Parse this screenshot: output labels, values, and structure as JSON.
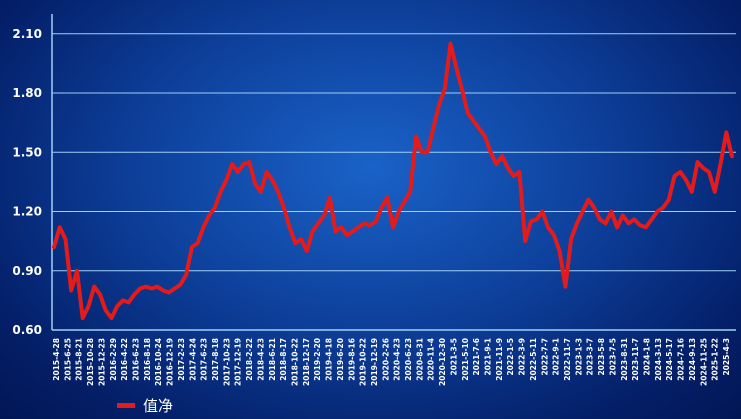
{
  "chart_data": {
    "type": "line",
    "title": "",
    "xlabel": "",
    "ylabel": "",
    "ylim": [
      0.6,
      2.2
    ],
    "yticks": [
      0.6,
      0.9,
      1.2,
      1.5,
      1.8,
      2.1
    ],
    "ytick_labels": [
      "0.60",
      "0.90",
      "1.20",
      "1.50",
      "1.80",
      "2.10"
    ],
    "grid": true,
    "legend_position": "bottom-left",
    "line_color": "#e41b1b",
    "grid_color": "#9fd0f5",
    "xtick_labels": [
      "2015-4-28",
      "2015-6-25",
      "2015-8-21",
      "2015-10-28",
      "2015-12-23",
      "2016-2-29",
      "2016-4-22",
      "2016-6-23",
      "2016-8-18",
      "2016-10-24",
      "2016-12-19",
      "2017-2-23",
      "2017-4-24",
      "2017-6-23",
      "2017-8-18",
      "2017-10-23",
      "2017-12-19",
      "2018-2-22",
      "2018-4-23",
      "2018-6-21",
      "2018-8-17",
      "2018-10-22",
      "2018-12-17",
      "2019-2-20",
      "2019-4-18",
      "2019-6-20",
      "2019-8-16",
      "2019-10-22",
      "2019-12-19",
      "2020-2-26",
      "2020-4-23",
      "2020-6-23",
      "2020-8-31",
      "2020-11-4",
      "2020-12-30",
      "2021-3-5",
      "2021-5-10",
      "2021-7-6",
      "2021-9-1",
      "2021-11-9",
      "2022-1-5",
      "2022-3-9",
      "2022-5-11",
      "2022-7-7",
      "2022-9-1",
      "2022-11-7",
      "2023-1-3",
      "2023-3-7",
      "2023-5-8",
      "2023-7-5",
      "2023-8-31",
      "2023-11-7",
      "2024-1-8",
      "2024-3-13",
      "2024-5-17",
      "2024-7-16",
      "2024-9-13",
      "2024-11-25",
      "2025-1-22",
      "2025-4-3"
    ],
    "series": [
      {
        "name": "值净",
        "x": [
          "2015-4-28",
          "2015-5-28",
          "2015-6-25",
          "2015-7-20",
          "2015-8-21",
          "2015-9-15",
          "2015-10-28",
          "2015-11-25",
          "2015-12-23",
          "2016-1-28",
          "2016-2-29",
          "2016-3-25",
          "2016-4-22",
          "2016-5-25",
          "2016-6-23",
          "2016-7-20",
          "2016-8-18",
          "2016-9-20",
          "2016-10-24",
          "2016-11-20",
          "2016-12-19",
          "2017-1-20",
          "2017-2-23",
          "2017-3-24",
          "2017-4-24",
          "2017-5-24",
          "2017-6-23",
          "2017-7-20",
          "2017-8-18",
          "2017-9-20",
          "2017-10-23",
          "2017-11-20",
          "2017-12-19",
          "2018-1-20",
          "2018-2-22",
          "2018-3-22",
          "2018-4-23",
          "2018-5-22",
          "2018-6-21",
          "2018-7-20",
          "2018-8-17",
          "2018-9-20",
          "2018-10-22",
          "2018-11-20",
          "2018-12-17",
          "2019-1-20",
          "2019-2-20",
          "2019-3-20",
          "2019-4-18",
          "2019-5-20",
          "2019-6-20",
          "2019-7-20",
          "2019-8-16",
          "2019-9-20",
          "2019-10-22",
          "2019-11-20",
          "2019-12-19",
          "2020-1-20",
          "2020-2-26",
          "2020-3-25",
          "2020-4-23",
          "2020-5-20",
          "2020-6-23",
          "2020-7-28",
          "2020-8-31",
          "2020-10-5",
          "2020-11-4",
          "2020-12-5",
          "2020-12-30",
          "2021-2-1",
          "2021-3-5",
          "2021-4-5",
          "2021-5-10",
          "2021-6-5",
          "2021-7-6",
          "2021-8-1",
          "2021-9-1",
          "2021-10-5",
          "2021-11-9",
          "2021-12-5",
          "2022-1-5",
          "2022-2-5",
          "2022-3-9",
          "2022-4-10",
          "2022-5-11",
          "2022-6-10",
          "2022-7-7",
          "2022-8-1",
          "2022-9-1",
          "2022-10-5",
          "2022-11-7",
          "2022-12-5",
          "2023-1-3",
          "2023-2-5",
          "2023-3-7",
          "2023-4-5",
          "2023-5-8",
          "2023-6-5",
          "2023-7-5",
          "2023-8-1",
          "2023-8-31",
          "2023-10-5",
          "2023-11-7",
          "2023-12-5",
          "2024-1-8",
          "2024-2-10",
          "2024-3-13",
          "2024-4-15",
          "2024-5-17",
          "2024-6-15",
          "2024-7-16",
          "2024-8-15",
          "2024-9-13",
          "2024-10-20",
          "2024-11-25",
          "2024-12-20",
          "2025-1-22",
          "2025-2-25",
          "2025-4-3"
        ],
        "values": [
          1.02,
          1.12,
          1.06,
          0.8,
          0.9,
          0.66,
          0.72,
          0.82,
          0.78,
          0.7,
          0.66,
          0.72,
          0.75,
          0.74,
          0.78,
          0.81,
          0.82,
          0.81,
          0.82,
          0.8,
          0.79,
          0.81,
          0.83,
          0.88,
          1.02,
          1.04,
          1.12,
          1.18,
          1.22,
          1.3,
          1.36,
          1.44,
          1.4,
          1.44,
          1.45,
          1.34,
          1.3,
          1.4,
          1.36,
          1.3,
          1.22,
          1.12,
          1.04,
          1.06,
          1.0,
          1.1,
          1.14,
          1.18,
          1.27,
          1.1,
          1.12,
          1.08,
          1.1,
          1.12,
          1.14,
          1.13,
          1.15,
          1.22,
          1.27,
          1.12,
          1.2,
          1.25,
          1.3,
          1.58,
          1.5,
          1.5,
          1.62,
          1.74,
          1.82,
          2.05,
          1.93,
          1.82,
          1.7,
          1.66,
          1.62,
          1.58,
          1.5,
          1.44,
          1.48,
          1.42,
          1.38,
          1.4,
          1.05,
          1.15,
          1.16,
          1.2,
          1.12,
          1.08,
          1.0,
          0.82,
          1.06,
          1.14,
          1.2,
          1.26,
          1.22,
          1.16,
          1.14,
          1.2,
          1.12,
          1.18,
          1.14,
          1.16,
          1.13,
          1.12,
          1.16,
          1.2,
          1.22,
          1.26,
          1.38,
          1.4,
          1.36,
          1.3,
          1.45,
          1.42,
          1.4,
          1.3,
          1.44,
          1.6,
          1.48
        ]
      }
    ]
  }
}
